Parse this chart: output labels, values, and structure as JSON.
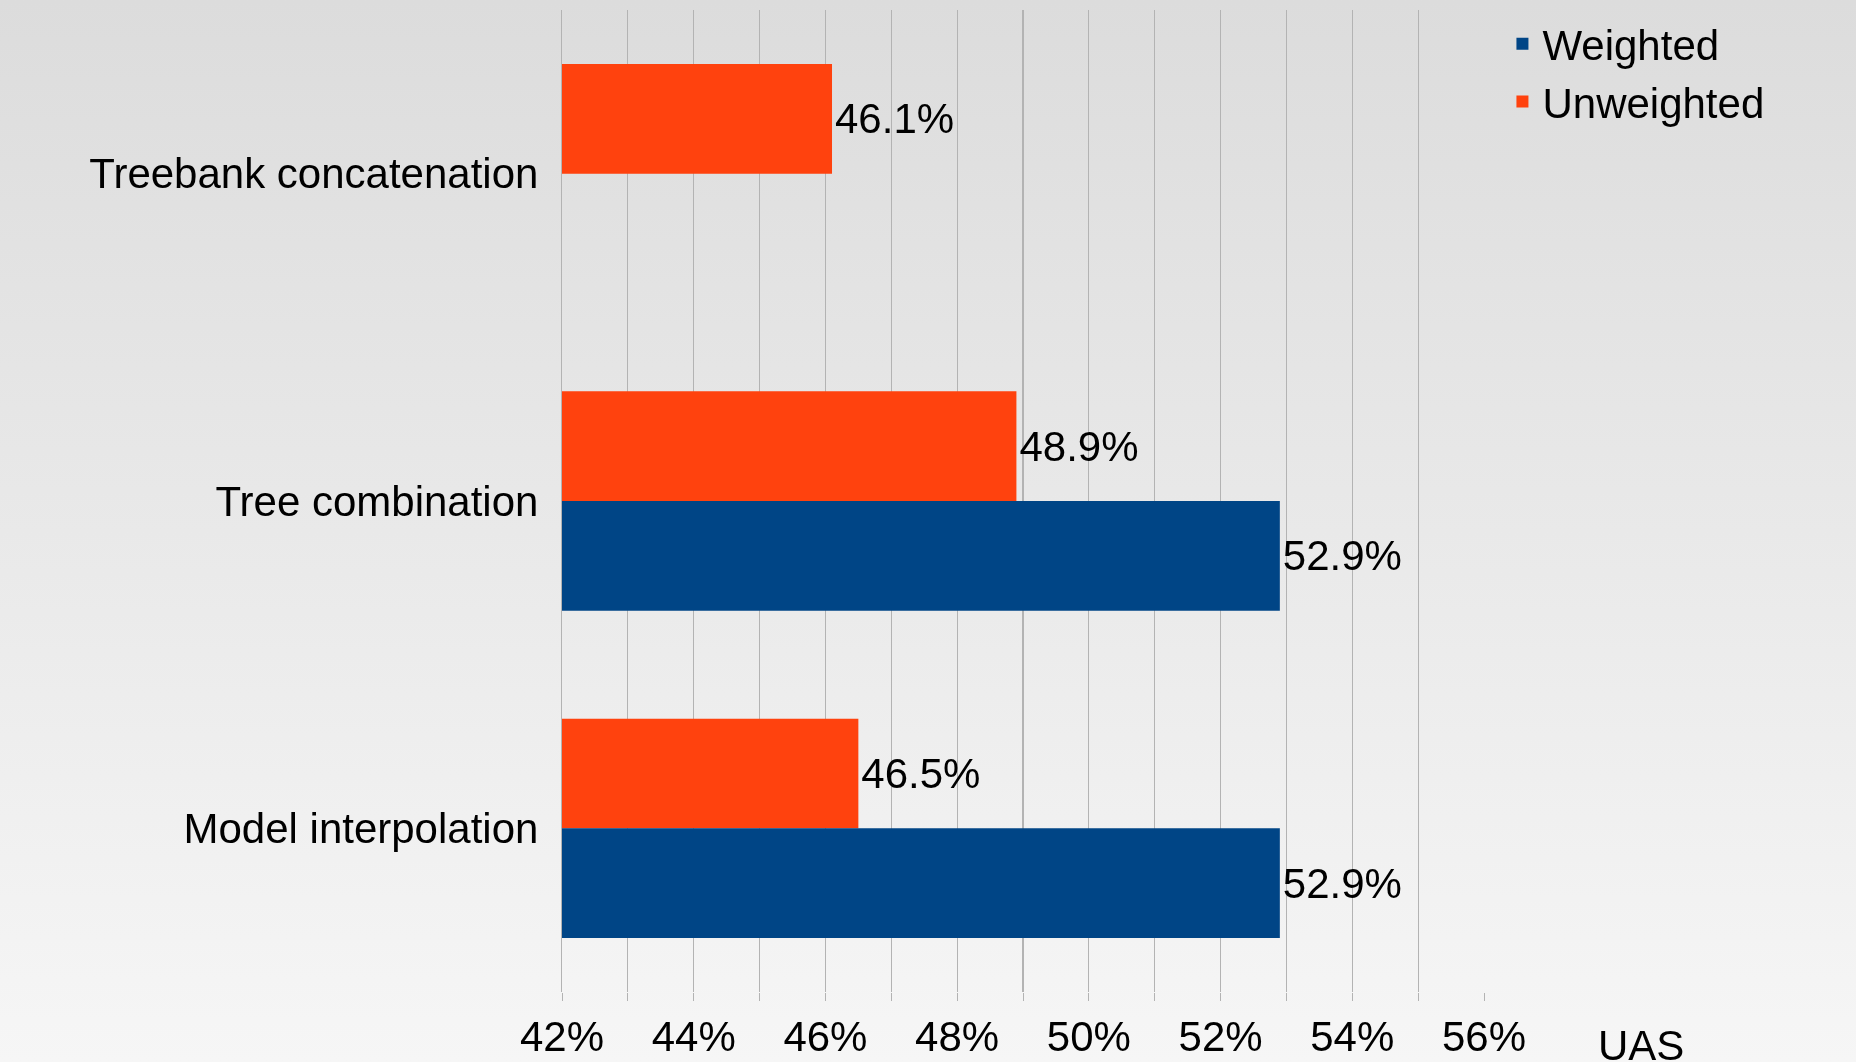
{
  "chart_data": {
    "type": "bar",
    "orientation": "horizontal",
    "xlabel": "UAS",
    "categories": [
      "Treebank concatenation",
      "Tree combination",
      "Model interpolation"
    ],
    "series": [
      {
        "name": "Weighted",
        "color": "#004586",
        "values": [
          null,
          52.9,
          52.9
        ],
        "value_labels": [
          null,
          "52.9%",
          "52.9%"
        ]
      },
      {
        "name": "Unweighted",
        "color": "#ff420e",
        "values": [
          46.1,
          48.9,
          46.5
        ],
        "value_labels": [
          "46.1%",
          "48.9%",
          "46.5%"
        ]
      }
    ],
    "xlim": [
      42,
      56
    ],
    "xticks": [
      {
        "value": 42,
        "label": "42%"
      },
      {
        "value": 43,
        "label": null
      },
      {
        "value": 44,
        "label": "44%"
      },
      {
        "value": 45,
        "label": null
      },
      {
        "value": 46,
        "label": "46%"
      },
      {
        "value": 47,
        "label": null
      },
      {
        "value": 48,
        "label": "48%"
      },
      {
        "value": 49,
        "label": null
      },
      {
        "value": 50,
        "label": "50%"
      },
      {
        "value": 51,
        "label": null
      },
      {
        "value": 52,
        "label": "52%"
      },
      {
        "value": 53,
        "label": null
      },
      {
        "value": 54,
        "label": "54%"
      },
      {
        "value": 55,
        "label": null
      },
      {
        "value": 56,
        "label": "56%"
      }
    ],
    "grid": "x",
    "legend": "top right"
  }
}
